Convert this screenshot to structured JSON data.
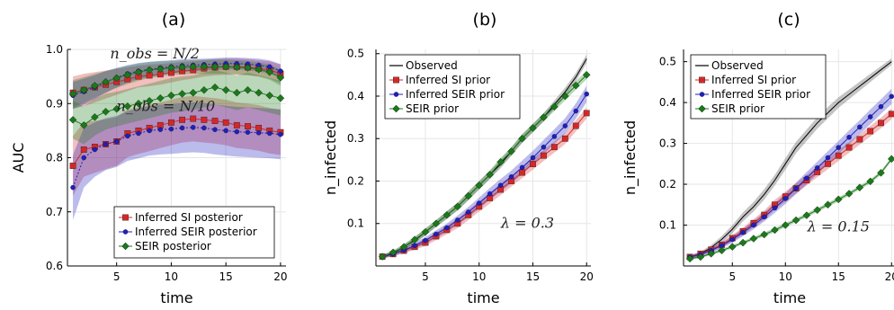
{
  "chart_data": [
    {
      "type": "line",
      "title": "(a)",
      "xlabel": "time",
      "ylabel": "AUC",
      "xlim": [
        0.5,
        20.5
      ],
      "ylim": [
        0.6,
        1.0
      ],
      "xticks": [
        5,
        10,
        15,
        20
      ],
      "yticks": [
        0.6,
        0.7,
        0.8,
        0.9,
        1.0
      ],
      "grid": true,
      "legend": "bottom-right",
      "annotations": [
        {
          "text": "n_obs = N/2",
          "x": 8.5,
          "y": 0.983
        },
        {
          "text": "n_obs = N/10",
          "x": 9.5,
          "y": 0.886
        }
      ],
      "x": [
        1,
        2,
        3,
        4,
        5,
        6,
        7,
        8,
        9,
        10,
        11,
        12,
        13,
        14,
        15,
        16,
        17,
        18,
        19,
        20
      ],
      "series": [
        {
          "name": "Inferred SI posterior",
          "color": "#d62728",
          "marker": "square",
          "group": "N/2",
          "values": [
            0.92,
            0.925,
            0.93,
            0.935,
            0.94,
            0.945,
            0.95,
            0.952,
            0.954,
            0.957,
            0.96,
            0.962,
            0.965,
            0.967,
            0.968,
            0.968,
            0.967,
            0.965,
            0.962,
            0.955
          ],
          "band": [
            0.03,
            0.03,
            0.028,
            0.026,
            0.024,
            0.022,
            0.02,
            0.02,
            0.019,
            0.018,
            0.017,
            0.016,
            0.015,
            0.015,
            0.015,
            0.015,
            0.015,
            0.015,
            0.016,
            0.017
          ]
        },
        {
          "name": "Inferred SEIR posterior",
          "color": "#1f1fbf",
          "marker": "circle",
          "group": "N/2",
          "values": [
            0.915,
            0.922,
            0.93,
            0.94,
            0.948,
            0.955,
            0.96,
            0.963,
            0.966,
            0.968,
            0.97,
            0.971,
            0.972,
            0.973,
            0.974,
            0.974,
            0.973,
            0.971,
            0.968,
            0.96
          ],
          "band": [
            0.025,
            0.024,
            0.022,
            0.02,
            0.018,
            0.016,
            0.015,
            0.014,
            0.013,
            0.012,
            0.012,
            0.011,
            0.011,
            0.011,
            0.011,
            0.011,
            0.011,
            0.012,
            0.012,
            0.013
          ]
        },
        {
          "name": "SEIR posterior",
          "color": "#1a7a1a",
          "marker": "diamond",
          "group": "N/2",
          "values": [
            0.918,
            0.925,
            0.933,
            0.94,
            0.947,
            0.953,
            0.958,
            0.962,
            0.964,
            0.966,
            0.967,
            0.968,
            0.968,
            0.968,
            0.968,
            0.967,
            0.966,
            0.963,
            0.958,
            0.948
          ],
          "band": [
            0.025,
            0.024,
            0.022,
            0.02,
            0.018,
            0.017,
            0.016,
            0.015,
            0.014,
            0.013,
            0.013,
            0.013,
            0.013,
            0.013,
            0.013,
            0.013,
            0.013,
            0.013,
            0.014,
            0.015
          ]
        },
        {
          "name": "Inferred SI posterior",
          "color": "#d62728",
          "marker": "square",
          "group": "N/10",
          "values": [
            0.785,
            0.815,
            0.82,
            0.825,
            0.83,
            0.845,
            0.85,
            0.855,
            0.86,
            0.865,
            0.87,
            0.872,
            0.87,
            0.868,
            0.865,
            0.86,
            0.858,
            0.855,
            0.85,
            0.847
          ],
          "band": [
            0.055,
            0.05,
            0.048,
            0.046,
            0.045,
            0.044,
            0.043,
            0.043,
            0.042,
            0.042,
            0.042,
            0.042,
            0.042,
            0.042,
            0.042,
            0.042,
            0.042,
            0.042,
            0.042,
            0.042
          ]
        },
        {
          "name": "Inferred SEIR posterior",
          "color": "#1f1fbf",
          "marker": "circle",
          "group": "N/10",
          "values": [
            0.745,
            0.8,
            0.815,
            0.825,
            0.83,
            0.84,
            0.845,
            0.85,
            0.852,
            0.853,
            0.855,
            0.856,
            0.855,
            0.852,
            0.85,
            0.848,
            0.847,
            0.846,
            0.845,
            0.843
          ],
          "band": [
            0.06,
            0.055,
            0.05,
            0.048,
            0.047,
            0.046,
            0.046,
            0.046,
            0.046,
            0.046,
            0.046,
            0.046,
            0.046,
            0.046,
            0.046,
            0.046,
            0.046,
            0.046,
            0.046,
            0.046
          ]
        },
        {
          "name": "SEIR posterior",
          "color": "#1a7a1a",
          "marker": "diamond",
          "group": "N/10",
          "values": [
            0.87,
            0.86,
            0.875,
            0.885,
            0.89,
            0.895,
            0.9,
            0.905,
            0.91,
            0.915,
            0.918,
            0.92,
            0.925,
            0.93,
            0.925,
            0.92,
            0.925,
            0.92,
            0.915,
            0.91
          ],
          "band": [
            0.035,
            0.035,
            0.034,
            0.033,
            0.032,
            0.032,
            0.032,
            0.032,
            0.032,
            0.032,
            0.032,
            0.032,
            0.032,
            0.032,
            0.032,
            0.032,
            0.032,
            0.032,
            0.032,
            0.032
          ]
        }
      ]
    },
    {
      "type": "line",
      "title": "(b)",
      "xlabel": "time",
      "ylabel": "n_infected",
      "xlim": [
        0.4,
        20.4
      ],
      "ylim": [
        0.0,
        0.51
      ],
      "xticks": [
        5,
        10,
        15,
        20
      ],
      "yticks": [
        0.1,
        0.2,
        0.3,
        0.4,
        0.5
      ],
      "grid": true,
      "legend": "top-left",
      "annotations": [
        {
          "text": "λ = 0.3",
          "x": 14.5,
          "y": 0.09
        }
      ],
      "x": [
        1,
        2,
        3,
        4,
        5,
        6,
        7,
        8,
        9,
        10,
        11,
        12,
        13,
        14,
        15,
        16,
        17,
        18,
        19,
        20
      ],
      "series": [
        {
          "name": "Observed",
          "color": "#000000",
          "marker": "none",
          "values": [
            0.022,
            0.03,
            0.045,
            0.06,
            0.08,
            0.1,
            0.12,
            0.14,
            0.165,
            0.19,
            0.215,
            0.24,
            0.27,
            0.3,
            0.325,
            0.35,
            0.38,
            0.41,
            0.445,
            0.488
          ],
          "band": [
            0.004,
            0.005,
            0.006,
            0.007,
            0.008,
            0.008,
            0.009,
            0.009,
            0.01,
            0.01,
            0.01,
            0.01,
            0.01,
            0.01,
            0.01,
            0.01,
            0.01,
            0.01,
            0.01,
            0.01
          ]
        },
        {
          "name": "Inferred SI prior",
          "color": "#d62728",
          "marker": "square",
          "values": [
            0.022,
            0.028,
            0.036,
            0.045,
            0.055,
            0.07,
            0.085,
            0.1,
            0.12,
            0.14,
            0.16,
            0.18,
            0.2,
            0.22,
            0.24,
            0.26,
            0.28,
            0.3,
            0.33,
            0.36
          ],
          "band": [
            0.004,
            0.005,
            0.006,
            0.007,
            0.008,
            0.009,
            0.01,
            0.011,
            0.012,
            0.012,
            0.013,
            0.013,
            0.013,
            0.013,
            0.013,
            0.013,
            0.013,
            0.013,
            0.013,
            0.013
          ]
        },
        {
          "name": "Inferred SEIR prior",
          "color": "#1f1fbf",
          "marker": "circle",
          "values": [
            0.022,
            0.028,
            0.037,
            0.048,
            0.06,
            0.075,
            0.09,
            0.108,
            0.127,
            0.148,
            0.17,
            0.19,
            0.21,
            0.232,
            0.255,
            0.28,
            0.305,
            0.33,
            0.365,
            0.405
          ],
          "band": [
            0.004,
            0.005,
            0.006,
            0.007,
            0.008,
            0.009,
            0.01,
            0.011,
            0.012,
            0.013,
            0.014,
            0.015,
            0.015,
            0.016,
            0.016,
            0.017,
            0.017,
            0.018,
            0.018,
            0.019
          ]
        },
        {
          "name": "SEIR prior",
          "color": "#1a7a1a",
          "marker": "diamond",
          "values": [
            0.022,
            0.032,
            0.045,
            0.062,
            0.08,
            0.1,
            0.12,
            0.14,
            0.165,
            0.19,
            0.215,
            0.245,
            0.27,
            0.3,
            0.325,
            0.35,
            0.375,
            0.4,
            0.425,
            0.45
          ],
          "band": [
            0.004,
            0.005,
            0.006,
            0.007,
            0.008,
            0.008,
            0.009,
            0.009,
            0.01,
            0.01,
            0.01,
            0.01,
            0.01,
            0.01,
            0.01,
            0.01,
            0.01,
            0.01,
            0.01,
            0.01
          ]
        }
      ]
    },
    {
      "type": "line",
      "title": "(c)",
      "xlabel": "time",
      "ylabel": "n_infected",
      "xlim": [
        0.4,
        20.4
      ],
      "ylim": [
        0.0,
        0.53
      ],
      "xticks": [
        5,
        10,
        15,
        20
      ],
      "yticks": [
        0.1,
        0.2,
        0.3,
        0.4,
        0.5
      ],
      "grid": true,
      "legend": "top-left",
      "annotations": [
        {
          "text": "λ = 0.15",
          "x": 15,
          "y": 0.085
        }
      ],
      "x": [
        1,
        2,
        3,
        4,
        5,
        6,
        7,
        8,
        9,
        10,
        11,
        12,
        13,
        14,
        15,
        16,
        17,
        18,
        19,
        20
      ],
      "series": [
        {
          "name": "Observed",
          "color": "#000000",
          "marker": "none",
          "values": [
            0.022,
            0.03,
            0.045,
            0.065,
            0.09,
            0.12,
            0.145,
            0.175,
            0.21,
            0.25,
            0.29,
            0.32,
            0.35,
            0.375,
            0.4,
            0.42,
            0.44,
            0.46,
            0.48,
            0.5
          ],
          "band": [
            0.004,
            0.005,
            0.006,
            0.008,
            0.01,
            0.011,
            0.012,
            0.013,
            0.013,
            0.014,
            0.014,
            0.014,
            0.014,
            0.014,
            0.013,
            0.012,
            0.011,
            0.01,
            0.009,
            0.008
          ]
        },
        {
          "name": "Inferred SI prior",
          "color": "#d62728",
          "marker": "square",
          "values": [
            0.022,
            0.03,
            0.04,
            0.052,
            0.068,
            0.085,
            0.105,
            0.125,
            0.15,
            0.17,
            0.19,
            0.21,
            0.23,
            0.25,
            0.27,
            0.29,
            0.31,
            0.33,
            0.35,
            0.372
          ],
          "band": [
            0.004,
            0.005,
            0.006,
            0.007,
            0.008,
            0.009,
            0.01,
            0.011,
            0.012,
            0.012,
            0.013,
            0.013,
            0.013,
            0.013,
            0.013,
            0.013,
            0.013,
            0.013,
            0.013,
            0.013
          ]
        },
        {
          "name": "Inferred SEIR prior",
          "color": "#1f1fbf",
          "marker": "circle",
          "values": [
            0.022,
            0.028,
            0.038,
            0.05,
            0.065,
            0.082,
            0.1,
            0.12,
            0.142,
            0.165,
            0.19,
            0.215,
            0.24,
            0.265,
            0.29,
            0.315,
            0.34,
            0.365,
            0.39,
            0.415
          ],
          "band": [
            0.004,
            0.005,
            0.006,
            0.007,
            0.008,
            0.009,
            0.01,
            0.011,
            0.012,
            0.013,
            0.014,
            0.015,
            0.015,
            0.016,
            0.016,
            0.017,
            0.017,
            0.018,
            0.018,
            0.019
          ]
        },
        {
          "name": "SEIR prior",
          "color": "#1a7a1a",
          "marker": "diamond",
          "values": [
            0.018,
            0.022,
            0.03,
            0.038,
            0.047,
            0.057,
            0.067,
            0.077,
            0.088,
            0.1,
            0.112,
            0.124,
            0.137,
            0.15,
            0.163,
            0.177,
            0.192,
            0.207,
            0.228,
            0.262
          ],
          "band": [
            0.003,
            0.003,
            0.003,
            0.004,
            0.004,
            0.004,
            0.004,
            0.005,
            0.005,
            0.005,
            0.005,
            0.005,
            0.005,
            0.005,
            0.005,
            0.005,
            0.005,
            0.005,
            0.005,
            0.005
          ]
        }
      ]
    }
  ]
}
